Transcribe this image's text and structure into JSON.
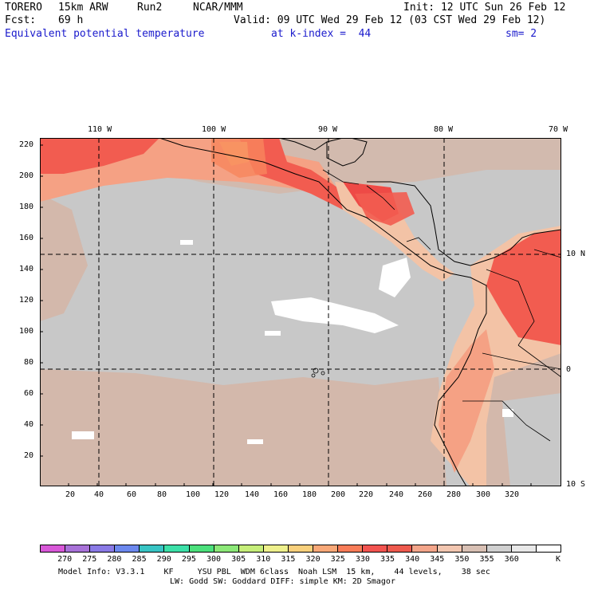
{
  "header": {
    "model": "TORERO",
    "resolution": "15km ARW",
    "run": "Run2",
    "org": "NCAR/MMM",
    "init": "Init: 12 UTC Sun 26 Feb 12",
    "fcst_label": "Fcst:",
    "fcst_value": "69 h",
    "valid": "Valid: 09 UTC Wed 29 Feb 12 (03 CST Wed 29 Feb 12)"
  },
  "field": {
    "name": "Equivalent potential temperature",
    "level": "at k-index =  44",
    "smooth": "sm= 2"
  },
  "map": {
    "top_lon_labels": [
      "110 W",
      "100 W",
      "90 W",
      "80 W",
      "70 W"
    ],
    "right_lat_labels": [
      "10 N",
      "0",
      "10 S"
    ],
    "left_grid_labels": [
      "220",
      "200",
      "180",
      "160",
      "140",
      "120",
      "100",
      "80",
      "60",
      "40",
      "20"
    ],
    "bottom_grid_labels": [
      "20",
      "40",
      "60",
      "80",
      "100",
      "120",
      "140",
      "160",
      "180",
      "200",
      "220",
      "240",
      "260",
      "280",
      "300",
      "320"
    ],
    "fill_colors": {
      "ocean_gray": "#c8c8c8",
      "tan_345": "#d3b8ab",
      "peach_340": "#f3c3a6",
      "salmon_335": "#f5a184",
      "red_330": "#f25c50",
      "red_325": "#ee4a46",
      "orange_320": "#f8865c",
      "yellow_315": "#f9c977",
      "white_360": "#ffffff"
    }
  },
  "colorbar": {
    "colors": [
      "#d858d8",
      "#a872d8",
      "#8a7ae6",
      "#6c88ee",
      "#38c4c4",
      "#3ce0a8",
      "#4ce07c",
      "#8ce878",
      "#c6ee7a",
      "#eef08c",
      "#f8d07c",
      "#f8a878",
      "#f87c58",
      "#f25450",
      "#ee5a4e",
      "#f3a58a",
      "#f2c6b0",
      "#d8c0b4",
      "#d0d0d0",
      "#e8e8e8",
      "#ffffff"
    ],
    "labels": [
      "270",
      "275",
      "280",
      "285",
      "290",
      "295",
      "300",
      "305",
      "310",
      "315",
      "320",
      "325",
      "330",
      "335",
      "340",
      "345",
      "350",
      "355",
      "360"
    ],
    "unit": "K"
  },
  "footer": {
    "line1": "Model Info: V3.3.1    KF     YSU PBL  WDM 6class  Noah LSM  15 km,    44 levels,    38 sec",
    "line2": "LW: Godd SW: Goddard DIFF: simple KM: 2D Smagor"
  }
}
